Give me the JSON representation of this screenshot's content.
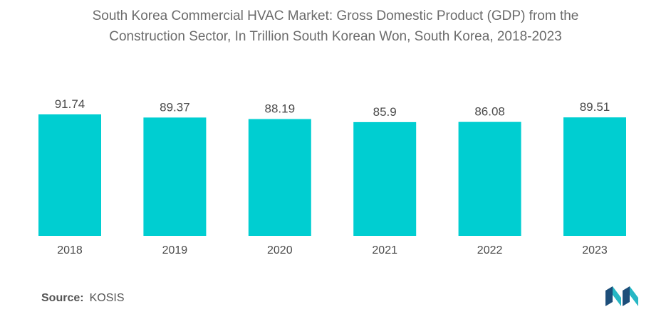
{
  "title_line1": "South Korea Commercial HVAC Market: Gross Domestic Product (GDP) from the",
  "title_line2": "Construction Sector, In Trillion South Korean Won, South Korea, 2018-2023",
  "source_label": "Source:",
  "source_value": "KOSIS",
  "colors": {
    "bar": "#00CED1",
    "logo_dark": "#1d4e7a",
    "logo_light": "#27b7c4"
  },
  "chart_data": {
    "type": "bar",
    "title": "South Korea Commercial HVAC Market: Gross Domestic Product (GDP) from the Construction Sector, In Trillion South Korean Won, South Korea, 2018-2023",
    "categories": [
      "2018",
      "2019",
      "2020",
      "2021",
      "2022",
      "2023"
    ],
    "values": [
      91.74,
      89.37,
      88.19,
      85.9,
      86.08,
      89.51
    ],
    "value_labels": [
      "91.74",
      "89.37",
      "88.19",
      "85.9",
      "86.08",
      "89.51"
    ],
    "xlabel": "",
    "ylabel": "",
    "ylim": [
      0,
      91.74
    ],
    "grid": false,
    "legend": "none"
  }
}
